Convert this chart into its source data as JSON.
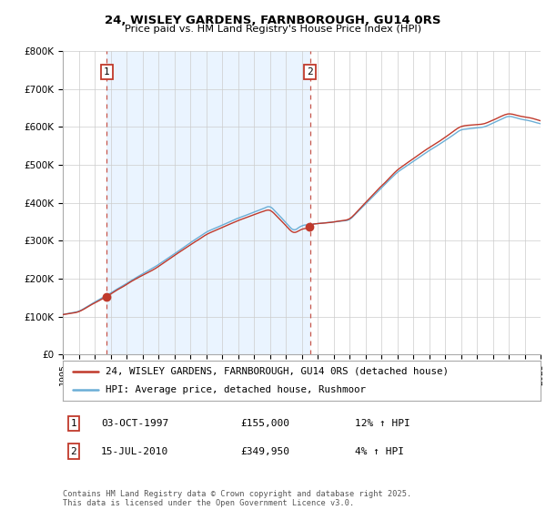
{
  "title_line1": "24, WISLEY GARDENS, FARNBOROUGH, GU14 0RS",
  "title_line2": "Price paid vs. HM Land Registry's House Price Index (HPI)",
  "ylim": [
    0,
    800000
  ],
  "yticks": [
    0,
    100000,
    200000,
    300000,
    400000,
    500000,
    600000,
    700000,
    800000
  ],
  "ytick_labels": [
    "£0",
    "£100K",
    "£200K",
    "£300K",
    "£400K",
    "£500K",
    "£600K",
    "£700K",
    "£800K"
  ],
  "xmin": 1995,
  "xmax": 2025,
  "hpi_color": "#6baed6",
  "price_color": "#c0392b",
  "shade_color": "#ddeeff",
  "purchase1_date": 1997.75,
  "purchase1_price": 155000,
  "purchase2_date": 2010.54,
  "purchase2_price": 349950,
  "legend_line1": "24, WISLEY GARDENS, FARNBOROUGH, GU14 0RS (detached house)",
  "legend_line2": "HPI: Average price, detached house, Rushmoor",
  "table_row1": [
    "1",
    "03-OCT-1997",
    "£155,000",
    "12% ↑ HPI"
  ],
  "table_row2": [
    "2",
    "15-JUL-2010",
    "£349,950",
    "4% ↑ HPI"
  ],
  "footnote": "Contains HM Land Registry data © Crown copyright and database right 2025.\nThis data is licensed under the Open Government Licence v3.0.",
  "background_color": "#ffffff",
  "grid_color": "#cccccc"
}
